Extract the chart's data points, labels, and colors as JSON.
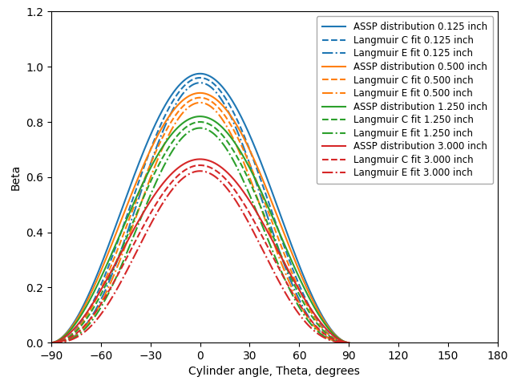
{
  "xlabel": "Cylinder angle, Theta, degrees",
  "ylabel": "Beta",
  "xlim": [
    -90,
    180
  ],
  "ylim": [
    0,
    1.2
  ],
  "xticks": [
    -90,
    -60,
    -30,
    0,
    30,
    60,
    90,
    120,
    150,
    180
  ],
  "yticks": [
    0.0,
    0.2,
    0.4,
    0.6,
    0.8,
    1.0,
    1.2
  ],
  "cylinders": [
    {
      "size": "0.125",
      "color": "#1f77b4",
      "assp_peak": 0.975,
      "assp_n": 1.8,
      "langC_peak": 0.96,
      "langC_n": 2.2,
      "langE_peak": 0.942,
      "langE_n": 2.6
    },
    {
      "size": "0.500",
      "color": "#ff7f0e",
      "assp_peak": 0.905,
      "assp_n": 1.8,
      "langC_peak": 0.888,
      "langC_n": 2.2,
      "langE_peak": 0.87,
      "langE_n": 2.6
    },
    {
      "size": "1.250",
      "color": "#2ca02c",
      "assp_peak": 0.82,
      "assp_n": 1.8,
      "langC_peak": 0.8,
      "langC_n": 2.2,
      "langE_peak": 0.778,
      "langE_n": 2.6
    },
    {
      "size": "3.000",
      "color": "#d62728",
      "assp_peak": 0.665,
      "assp_n": 1.8,
      "langC_peak": 0.643,
      "langC_n": 2.2,
      "langE_peak": 0.622,
      "langE_n": 2.6
    }
  ],
  "legend_fontsize": 8.5,
  "linewidth": 1.5
}
